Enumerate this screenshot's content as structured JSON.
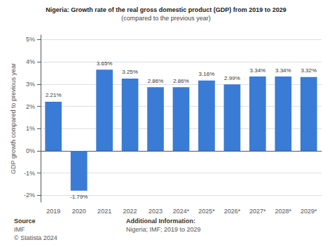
{
  "chart_data": {
    "type": "bar",
    "title": "Nigeria: Growth rate of the real gross domestic product (GDP) from 2019 to 2029",
    "subtitle": "(compared to the previous year)",
    "categories": [
      "2019",
      "2020",
      "2021",
      "2022",
      "2023",
      "2024*",
      "2025*",
      "2026*",
      "2027*",
      "2028*",
      "2029*"
    ],
    "values": [
      2.21,
      -1.79,
      3.65,
      3.25,
      2.86,
      2.86,
      3.16,
      2.99,
      3.34,
      3.34,
      3.32
    ],
    "value_labels": [
      "2.21%",
      "-1.79%",
      "3.65%",
      "3.25%",
      "2.86%",
      "2.86%",
      "3.16%",
      "2.99%",
      "3.34%",
      "3.34%",
      "3.32%"
    ],
    "data_labels": true,
    "color": "#3a7bd5",
    "ylabel": "GDP growth compared to previous year",
    "ylim": [
      -2.3,
      5.2
    ],
    "yticks": [
      {
        "value": -2,
        "label": "-2%"
      },
      {
        "value": -1,
        "label": "-1%"
      },
      {
        "value": 0,
        "label": "0%"
      },
      {
        "value": 1,
        "label": "1%"
      },
      {
        "value": 2,
        "label": "2%"
      },
      {
        "value": 3,
        "label": "3%"
      },
      {
        "value": 4,
        "label": "4%"
      },
      {
        "value": 5,
        "label": "5%"
      }
    ],
    "grid": true,
    "annotations": [
      "Source",
      "IMF",
      "© Statista 2024",
      "Additional Information:",
      "Nigeria; IMF; 2019 to 2029"
    ]
  }
}
